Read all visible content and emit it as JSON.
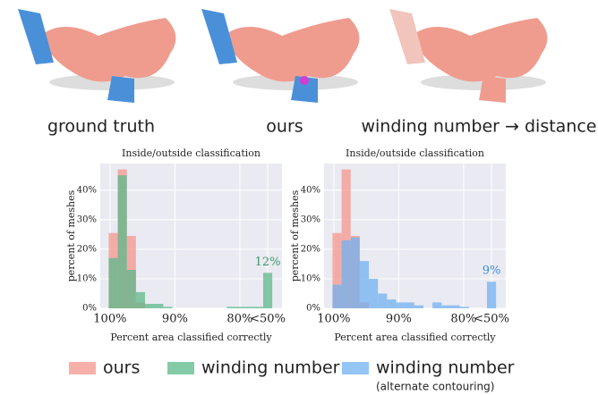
{
  "panels": [
    {
      "caption": "ground truth"
    },
    {
      "caption": "ours"
    },
    {
      "caption": "winding number → distance"
    }
  ],
  "chart_data": [
    {
      "type": "histogram",
      "title": "Inside/outside classification",
      "xlabel": "Percent area classified correctly",
      "ylabel": "percent of meshes",
      "bins": [
        100.2,
        98.8,
        97.4,
        96,
        94.6,
        93.2,
        91.8,
        90.4,
        89,
        87.6,
        86.2,
        84.8,
        83.4,
        82,
        80.6,
        79.2,
        77.8,
        76.4,
        75
      ],
      "series": [
        {
          "name": "ours",
          "color": "#f4958c",
          "values": [
            25.5,
            47,
            24.5,
            2,
            0,
            0,
            0,
            0,
            0,
            0,
            0,
            0,
            0,
            0,
            0,
            0,
            0,
            0
          ]
        },
        {
          "name": "winding number",
          "color": "#5cb88a",
          "values": [
            17,
            45,
            13,
            5.5,
            1.5,
            1.5,
            0.5,
            0,
            0,
            0,
            0,
            0,
            0,
            0.5,
            0.5,
            0.5,
            0.5,
            12
          ]
        }
      ],
      "xlim": [
        101.5,
        73.5
      ],
      "xticks": [
        {
          "value": 100,
          "label": "100%"
        },
        {
          "value": 90,
          "label": "90%"
        },
        {
          "value": 80,
          "label": "80%"
        },
        {
          "value": 75.7,
          "label": "<50%"
        }
      ],
      "ylim": [
        0,
        49
      ],
      "yticks": [
        {
          "value": 0,
          "label": "0%"
        },
        {
          "value": 10,
          "label": "10%"
        },
        {
          "value": 20,
          "label": "20%"
        },
        {
          "value": 30,
          "label": "30%"
        },
        {
          "value": 40,
          "label": "40%"
        }
      ],
      "grid": true,
      "annotation": {
        "text": "12%",
        "color": "#3a9a68"
      }
    },
    {
      "type": "histogram",
      "title": "Inside/outside classification",
      "xlabel": "Percent area classified correctly",
      "ylabel": "percent of meshes",
      "bins": [
        100.2,
        98.8,
        97.4,
        96,
        94.6,
        93.2,
        91.8,
        90.4,
        89,
        87.6,
        86.2,
        84.8,
        83.4,
        82,
        80.6,
        79.2,
        77.8,
        76.4,
        75
      ],
      "series": [
        {
          "name": "ours",
          "color": "#f4958c",
          "values": [
            25.5,
            47,
            24.5,
            2,
            0,
            0,
            0,
            0,
            0,
            0,
            0,
            0,
            0,
            0,
            0,
            0,
            0,
            0
          ]
        },
        {
          "name": "winding number",
          "note": "(alternate contouring)",
          "color": "#72b2f0",
          "values": [
            8,
            23,
            24,
            16,
            10,
            5,
            3,
            2,
            2,
            1,
            0,
            2,
            1,
            1,
            0.5,
            0,
            0,
            9
          ]
        }
      ],
      "xlim": [
        101.5,
        73.5
      ],
      "xticks": [
        {
          "value": 100,
          "label": "100%"
        },
        {
          "value": 90,
          "label": "90%"
        },
        {
          "value": 80,
          "label": "80%"
        },
        {
          "value": 75.7,
          "label": "<50%"
        }
      ],
      "ylim": [
        0,
        49
      ],
      "yticks": [
        {
          "value": 0,
          "label": "0%"
        },
        {
          "value": 10,
          "label": "10%"
        },
        {
          "value": 20,
          "label": "20%"
        },
        {
          "value": 30,
          "label": "30%"
        },
        {
          "value": 40,
          "label": "40%"
        }
      ],
      "grid": true,
      "annotation": {
        "text": "9%",
        "color": "#3d8fd8"
      }
    }
  ]
}
